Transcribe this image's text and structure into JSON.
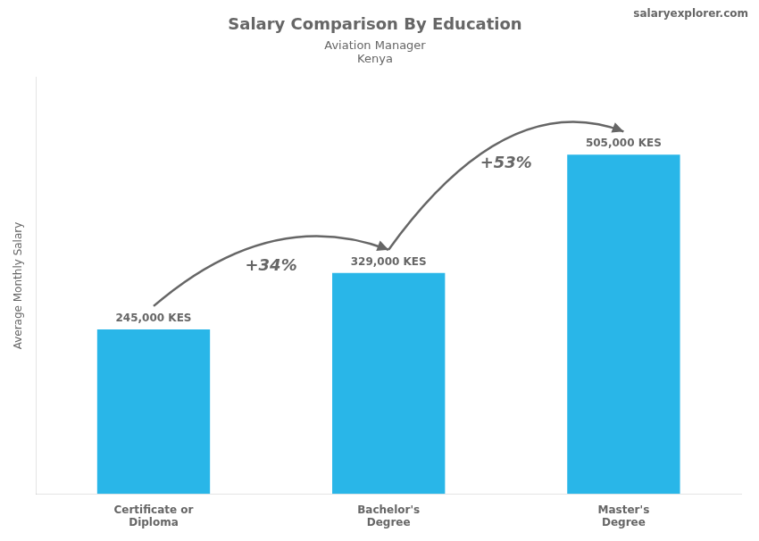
{
  "chart_data": {
    "type": "bar",
    "title": "Salary Comparison By Education",
    "subtitle": [
      "Aviation Manager",
      "Kenya"
    ],
    "ylabel": "Average Monthly Salary",
    "categories": [
      "Certificate or\nDiploma",
      "Bachelor's\nDegree",
      "Master's\nDegree"
    ],
    "values": [
      245000,
      329000,
      505000
    ],
    "value_labels": [
      "245,000 KES",
      "329,000 KES",
      "505,000 KES"
    ],
    "data_labels": true,
    "color": "#29b6e8",
    "ylim": [
      0,
      620000
    ],
    "tick_labels": "x",
    "grid": false,
    "annotations": [
      {
        "text": "+34%",
        "from": 0,
        "to": 1
      },
      {
        "text": "+53%",
        "from": 1,
        "to": 2
      },
      {
        "text": "salaryexplorer.com"
      }
    ]
  }
}
